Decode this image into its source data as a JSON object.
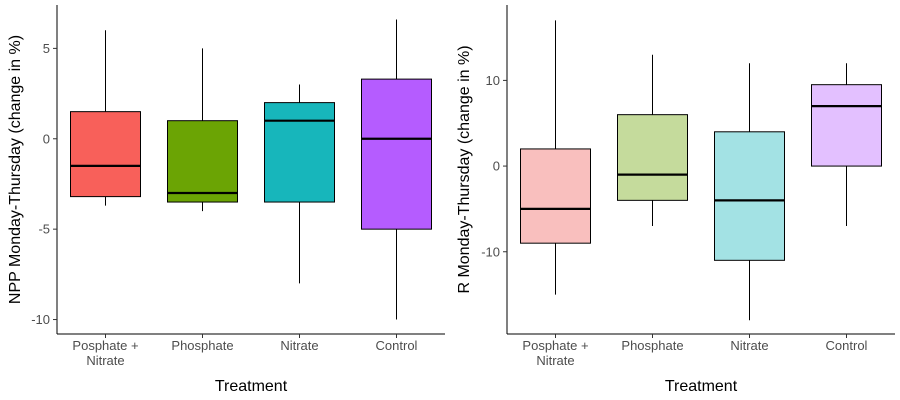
{
  "chart_data": [
    {
      "type": "box",
      "xlabel": "Treatment",
      "ylabel": "NPP Monday-Thursday (change in %)",
      "ylim": [
        -10.8,
        7.4
      ],
      "yticks": [
        5,
        0,
        -5,
        -10
      ],
      "ytick_labels": [
        "5",
        "0",
        "-5",
        "-10"
      ],
      "grid": false,
      "legend": "none",
      "categories": [
        {
          "lines": [
            "Posphate +",
            "Nitrate"
          ]
        },
        {
          "lines": [
            "Phosphate"
          ]
        },
        {
          "lines": [
            "Nitrate"
          ]
        },
        {
          "lines": [
            "Control"
          ]
        }
      ],
      "boxes": [
        {
          "min": -3.7,
          "q1": -3.2,
          "median": -1.5,
          "q3": 1.5,
          "max": 6.0,
          "color": "#F8605A"
        },
        {
          "min": -4.0,
          "q1": -3.5,
          "median": -3.0,
          "q3": 1.0,
          "max": 5.0,
          "color": "#6BA404"
        },
        {
          "min": -8.0,
          "q1": -3.5,
          "median": 1.0,
          "q3": 2.0,
          "max": 3.0,
          "color": "#17B6BB"
        },
        {
          "min": -10.0,
          "q1": -5.0,
          "median": 0.0,
          "q3": 3.3,
          "max": 6.6,
          "color": "#B55CFF"
        }
      ]
    },
    {
      "type": "box",
      "xlabel": "Treatment",
      "ylabel": "R Monday-Thursday (change in %)",
      "ylim": [
        -19.6,
        18.8
      ],
      "yticks": [
        10,
        0,
        -10
      ],
      "ytick_labels": [
        "10",
        "0",
        "-10"
      ],
      "grid": false,
      "legend": "none",
      "categories": [
        {
          "lines": [
            "Posphate +",
            "Nitrate"
          ]
        },
        {
          "lines": [
            "Phosphate"
          ]
        },
        {
          "lines": [
            "Nitrate"
          ]
        },
        {
          "lines": [
            "Control"
          ]
        }
      ],
      "boxes": [
        {
          "min": -15.0,
          "q1": -9.0,
          "median": -5.0,
          "q3": 2.0,
          "max": 17.0,
          "color": "#F9BFBE"
        },
        {
          "min": -7.0,
          "q1": -4.0,
          "median": -1.0,
          "q3": 6.0,
          "max": 13.0,
          "color": "#C5DB9C"
        },
        {
          "min": -18.0,
          "q1": -11.0,
          "median": -4.0,
          "q3": 4.0,
          "max": 12.0,
          "color": "#A3E2E4"
        },
        {
          "min": -7.0,
          "q1": 0.0,
          "median": 7.0,
          "q3": 9.5,
          "max": 12.0,
          "color": "#E3C0FF"
        }
      ]
    }
  ]
}
